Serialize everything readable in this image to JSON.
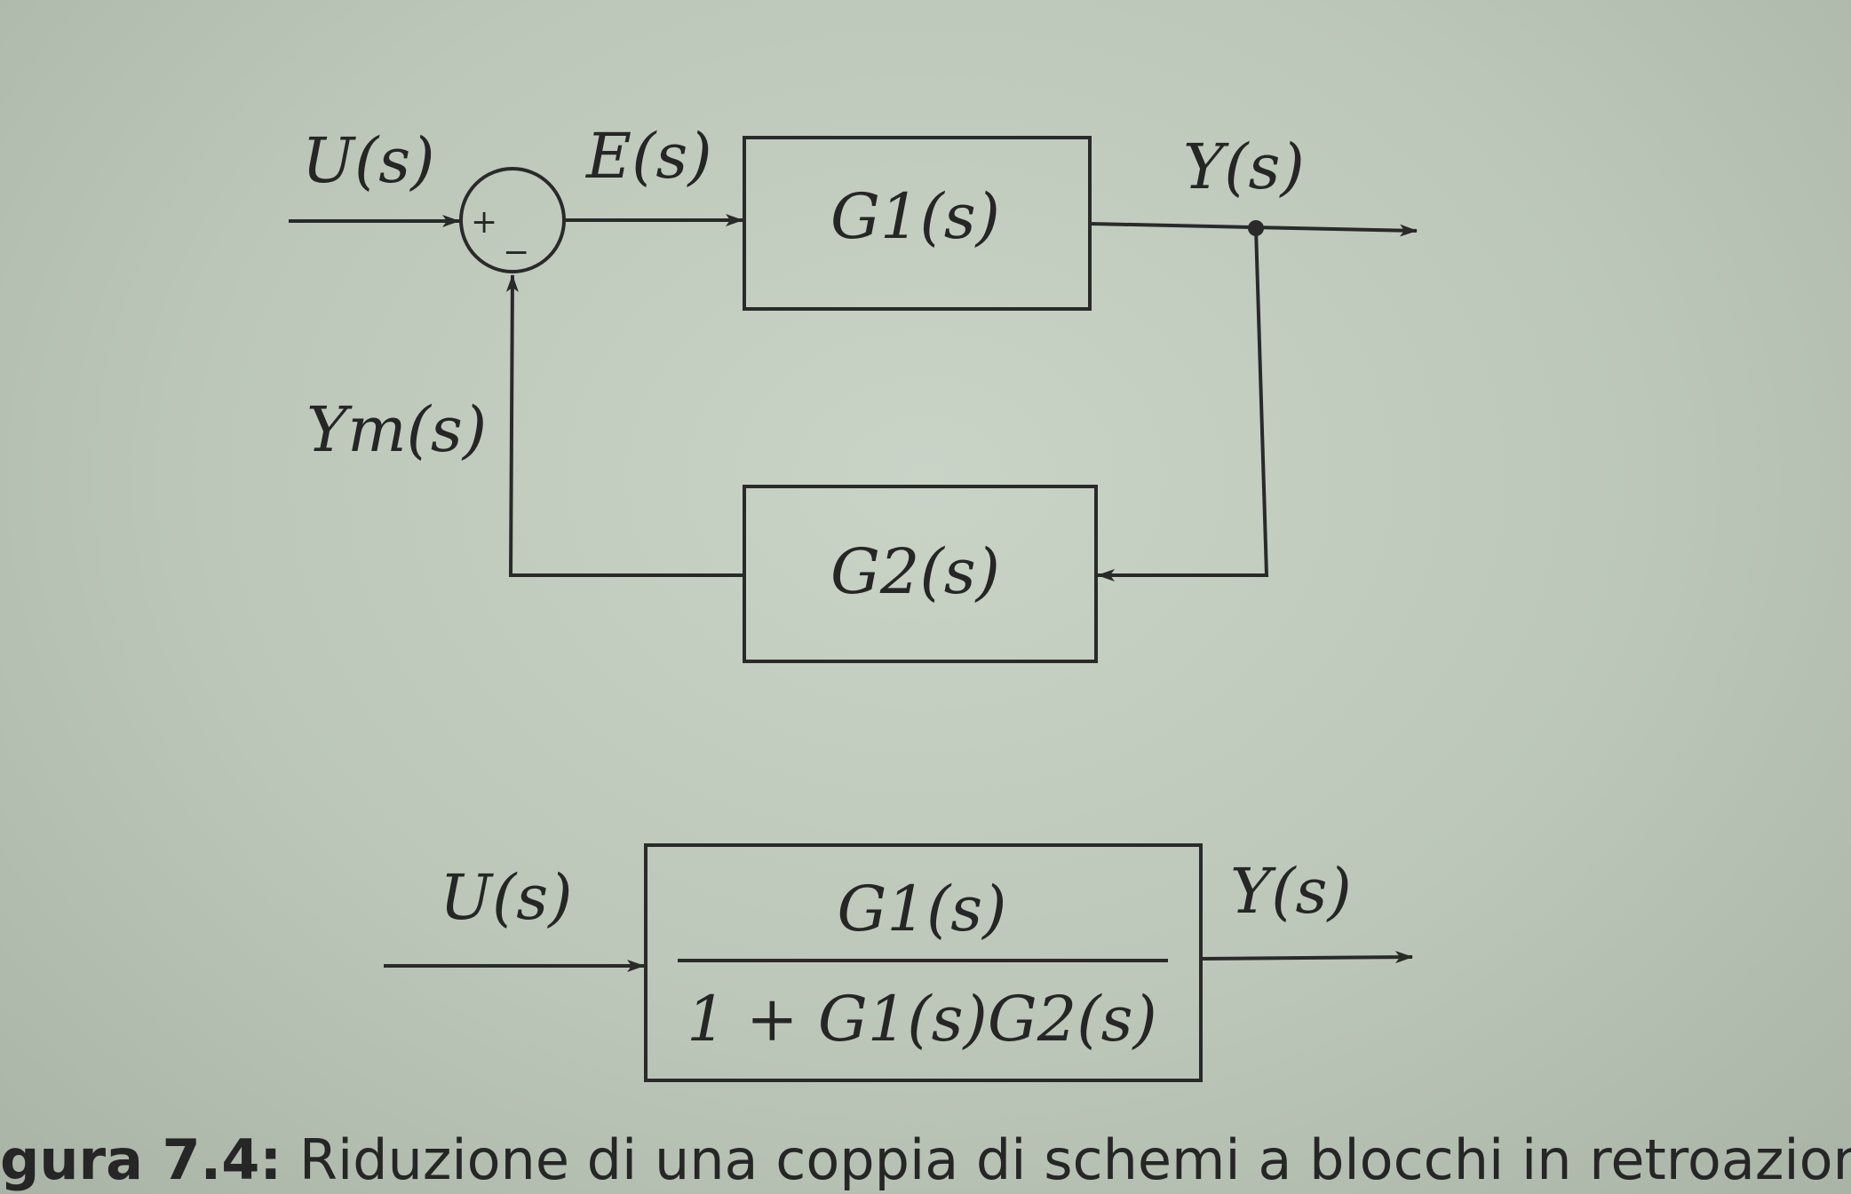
{
  "top_diagram": {
    "input_label": "U(s)",
    "error_label": "E(s)",
    "output_label": "Y(s)",
    "feedback_label": "Ym(s)",
    "summer_plus": "+",
    "summer_minus": "−",
    "forward_block": "G1(s)",
    "feedback_block": "G2(s)"
  },
  "bottom_diagram": {
    "input_label": "U(s)",
    "output_label": "Y(s)",
    "numerator": "G1(s)",
    "denominator": "1 + G1(s)G2(s)"
  },
  "caption": {
    "prefix": "gura 7.4:",
    "text": "Riduzione di una coppia di schemi a blocchi in retroazione."
  }
}
